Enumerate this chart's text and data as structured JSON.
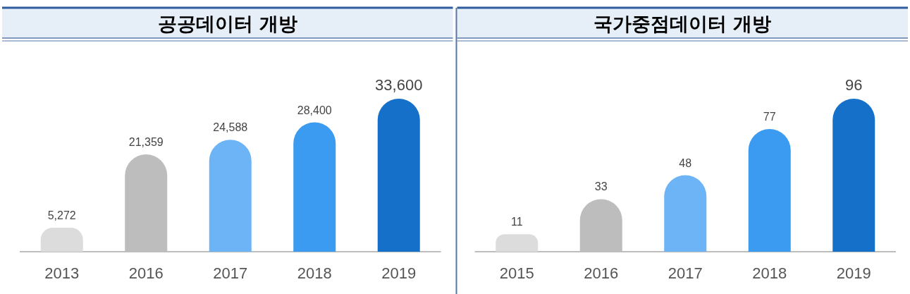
{
  "chart_data": [
    {
      "type": "bar",
      "title": "공공데이터 개방",
      "categories": [
        "2013",
        "2016",
        "2017",
        "2018",
        "2019"
      ],
      "values": [
        5272,
        21359,
        24588,
        28400,
        33600
      ],
      "value_labels": [
        "5,272",
        "21,359",
        "24,588",
        "28,400",
        "33,600"
      ],
      "colors": [
        "#dcdcdc",
        "#bdbdbd",
        "#6cb4f5",
        "#3a9bf0",
        "#1570c9"
      ]
    },
    {
      "type": "bar",
      "title": "국가중점데이터 개방",
      "categories": [
        "2015",
        "2016",
        "2017",
        "2018",
        "2019"
      ],
      "values": [
        11,
        33,
        48,
        77,
        96
      ],
      "value_labels": [
        "11",
        "33",
        "48",
        "77",
        "96"
      ],
      "colors": [
        "#dcdcdc",
        "#bdbdbd",
        "#6cb4f5",
        "#3a9bf0",
        "#1570c9"
      ]
    }
  ]
}
